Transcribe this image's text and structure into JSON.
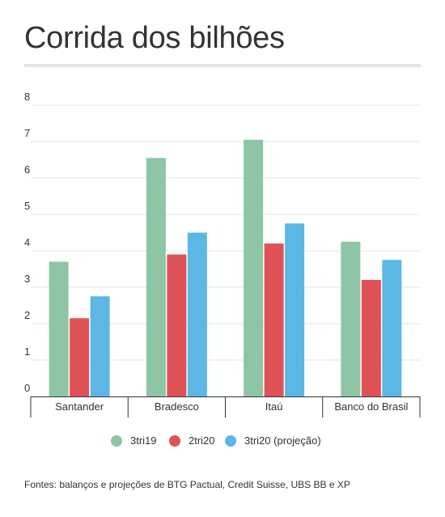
{
  "chart_data": {
    "type": "bar",
    "title": "Corrida dos bilhões",
    "categories": [
      "Santander",
      "Bradesco",
      "Itaú",
      "Banco do Brasil"
    ],
    "series": [
      {
        "name": "3tri19",
        "color": "#8dc5a5",
        "values": [
          3.7,
          6.55,
          7.05,
          4.25
        ]
      },
      {
        "name": "2tri20",
        "color": "#df5356",
        "values": [
          2.15,
          3.9,
          4.2,
          3.2
        ]
      },
      {
        "name": "3tri20 (projeção)",
        "color": "#5cb7e5",
        "values": [
          2.75,
          4.5,
          4.75,
          3.75
        ]
      }
    ],
    "yticks": [
      "0",
      "1",
      "2",
      "3",
      "4",
      "5",
      "6",
      "7",
      "8"
    ],
    "ylim": [
      0,
      8
    ],
    "grid": true,
    "legend_position": "bottom",
    "source": "Fontes: balanços e projeções de BTG Pactual, Credit Suisse, UBS BB e XP"
  }
}
